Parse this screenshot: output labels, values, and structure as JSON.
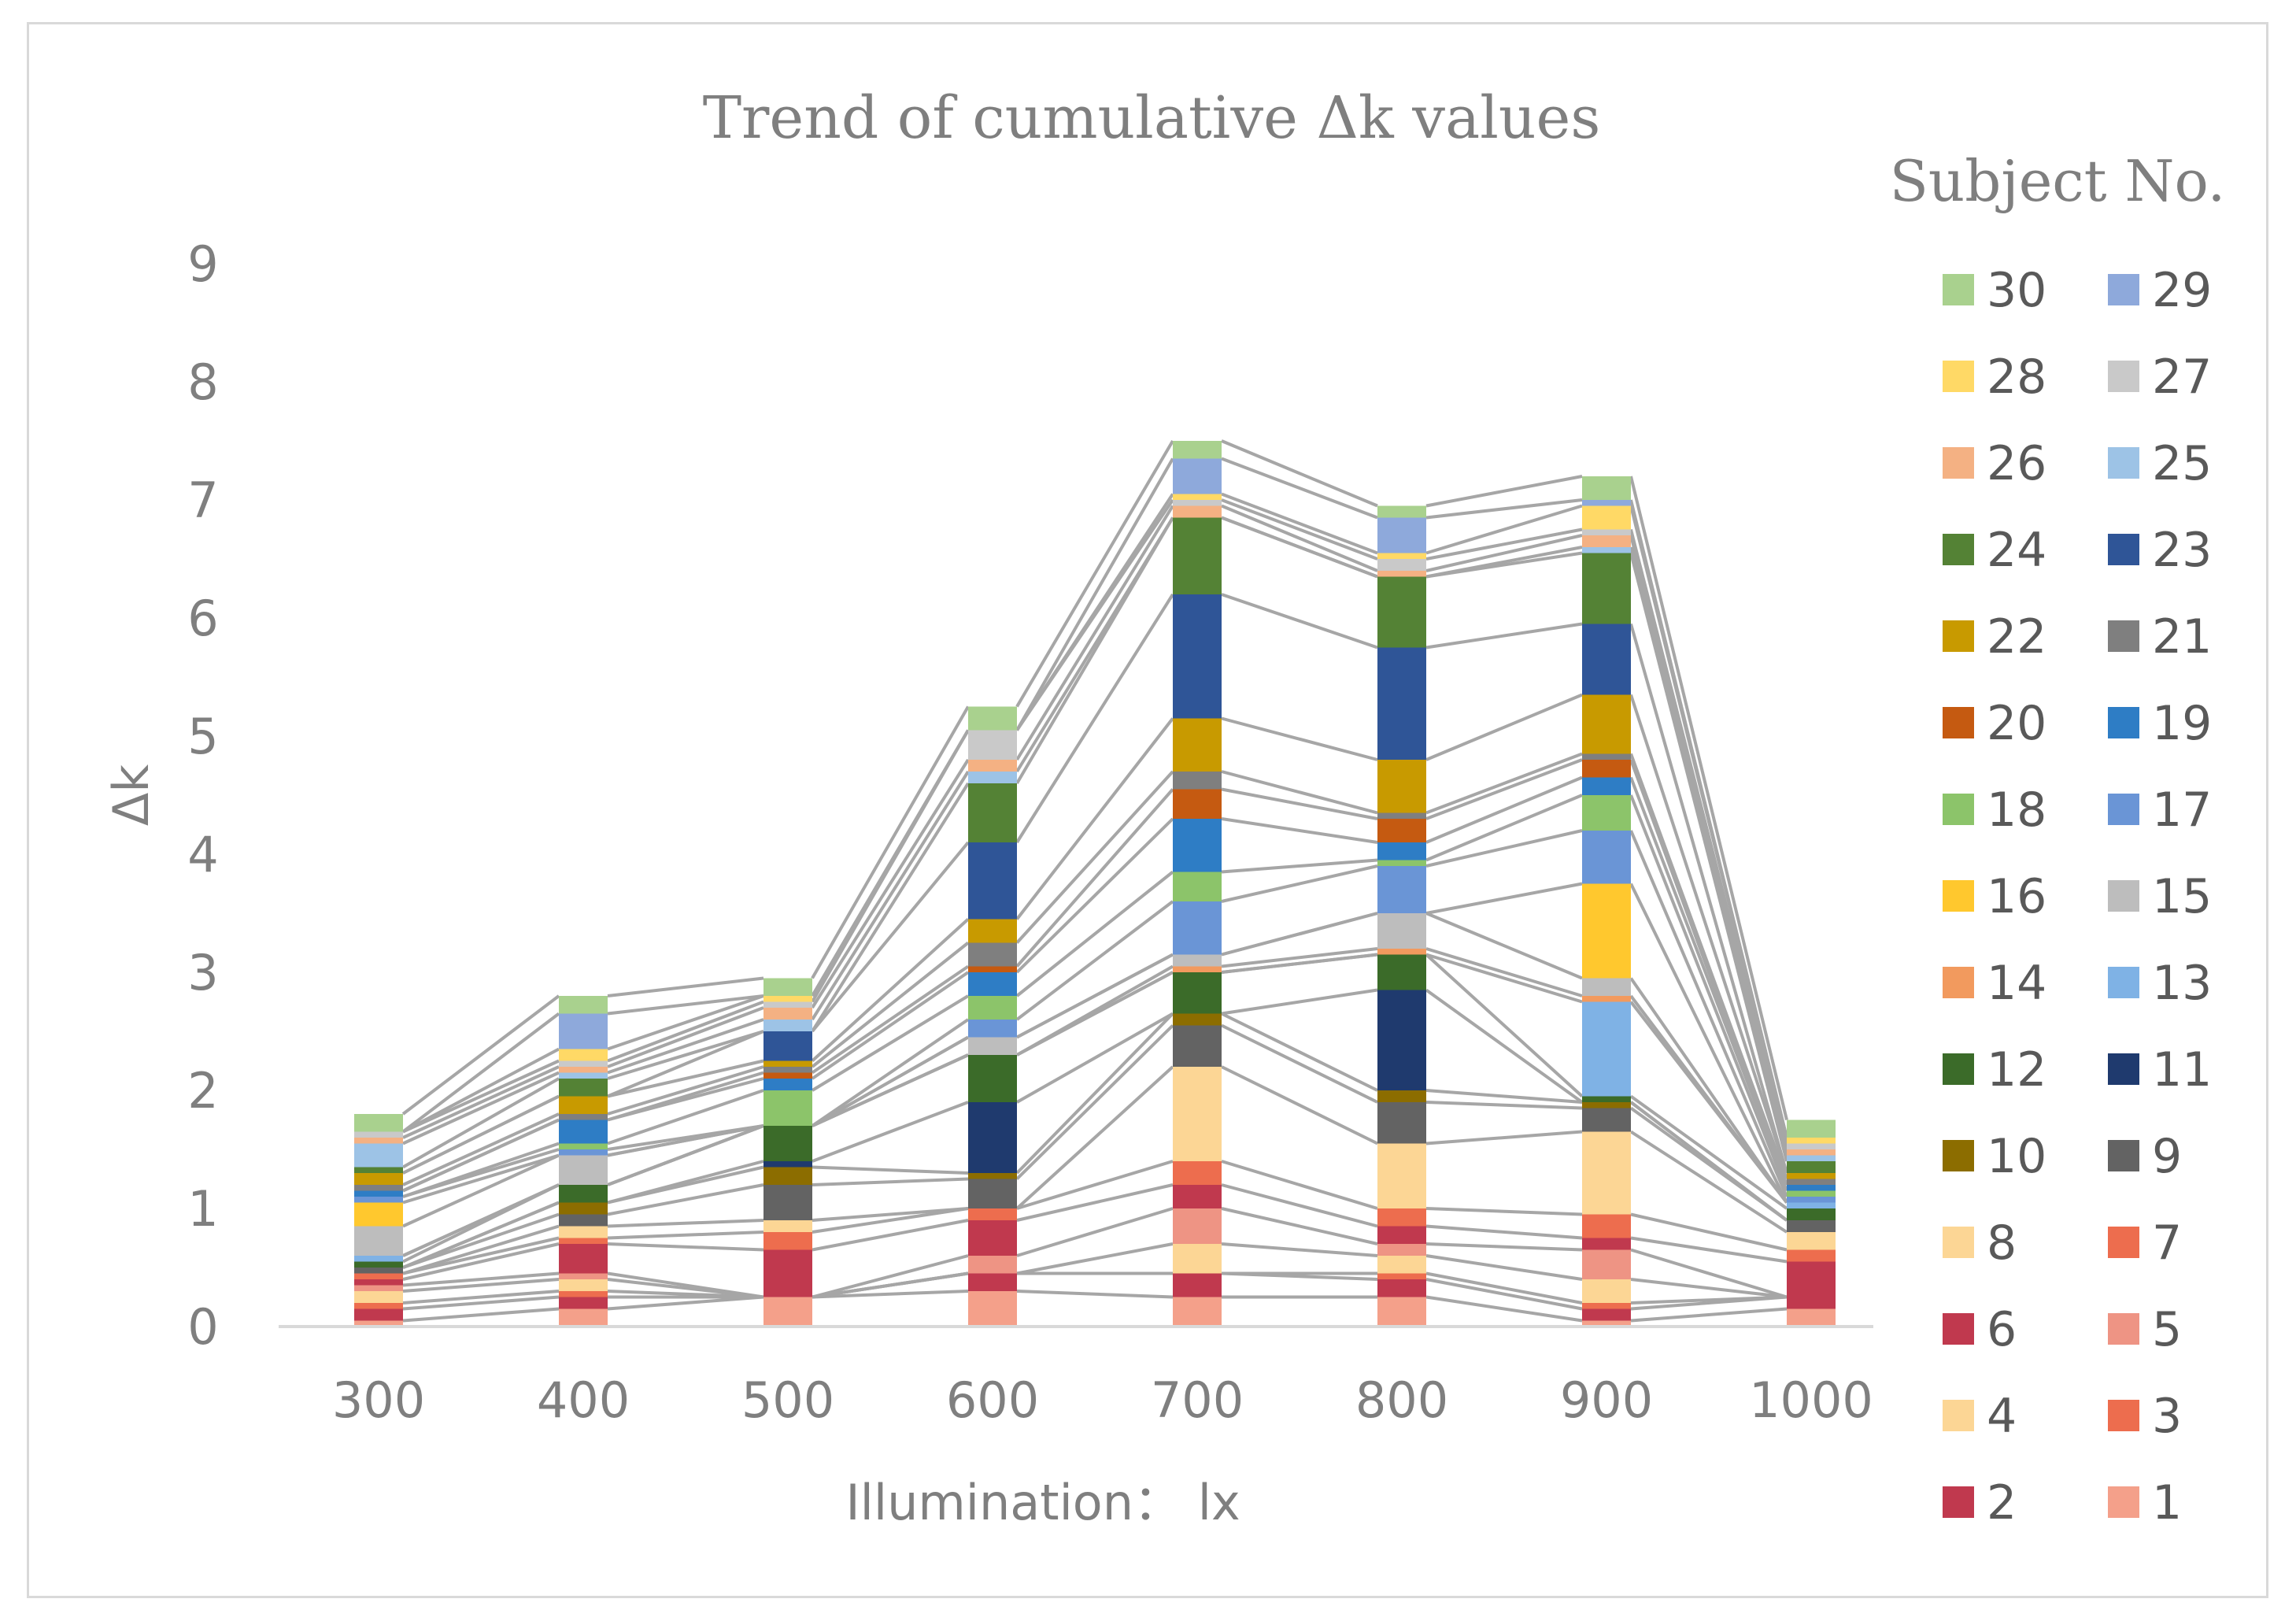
{
  "chart_data": {
    "type": "stacked-bar",
    "title": "Trend of cumulative Δk values",
    "xlabel": "Illumination： lx",
    "ylabel": "Δk",
    "legend_title": "Subject No.",
    "legend_position": "right",
    "ylim": [
      0,
      9
    ],
    "yticks": [
      "0",
      "1",
      "2",
      "3",
      "4",
      "5",
      "6",
      "7",
      "8",
      "9"
    ],
    "categories": [
      "300",
      "400",
      "500",
      "600",
      "700",
      "800",
      "900",
      "1000"
    ],
    "series": [
      {
        "name": "1",
        "color": "#F4A08A",
        "values": [
          0.05,
          0.15,
          0.25,
          0.3,
          0.25,
          0.25,
          0.05,
          0.15
        ]
      },
      {
        "name": "2",
        "color": "#C0394E",
        "values": [
          0.1,
          0.1,
          0.0,
          0.15,
          0.2,
          0.15,
          0.1,
          0.1
        ]
      },
      {
        "name": "3",
        "color": "#ED6D4E",
        "values": [
          0.05,
          0.05,
          0.0,
          0.0,
          0.0,
          0.05,
          0.05,
          0.0
        ]
      },
      {
        "name": "4",
        "color": "#FCD695",
        "values": [
          0.1,
          0.1,
          0.0,
          0.0,
          0.25,
          0.15,
          0.2,
          0.0
        ]
      },
      {
        "name": "5",
        "color": "#EE9484",
        "values": [
          0.05,
          0.05,
          0.0,
          0.15,
          0.3,
          0.1,
          0.25,
          0.0
        ]
      },
      {
        "name": "6",
        "color": "#C0394E",
        "values": [
          0.05,
          0.25,
          0.4,
          0.3,
          0.2,
          0.15,
          0.1,
          0.3
        ]
      },
      {
        "name": "7",
        "color": "#ED6D4E",
        "values": [
          0.05,
          0.05,
          0.15,
          0.1,
          0.2,
          0.15,
          0.2,
          0.1
        ]
      },
      {
        "name": "8",
        "color": "#FCD695",
        "values": [
          0.0,
          0.1,
          0.1,
          0.0,
          0.8,
          0.55,
          0.7,
          0.15
        ]
      },
      {
        "name": "9",
        "color": "#636363",
        "values": [
          0.05,
          0.1,
          0.3,
          0.25,
          0.35,
          0.35,
          0.2,
          0.1
        ]
      },
      {
        "name": "10",
        "color": "#8C6D00",
        "values": [
          0.0,
          0.1,
          0.15,
          0.05,
          0.1,
          0.1,
          0.05,
          0.0
        ]
      },
      {
        "name": "11",
        "color": "#1F3A6E",
        "values": [
          0.0,
          0.0,
          0.05,
          0.6,
          0.0,
          0.85,
          0.0,
          0.0
        ]
      },
      {
        "name": "12",
        "color": "#3B6B29",
        "values": [
          0.05,
          0.15,
          0.3,
          0.4,
          0.35,
          0.3,
          0.05,
          0.1
        ]
      },
      {
        "name": "13",
        "color": "#7FB2E5",
        "values": [
          0.05,
          0.0,
          0.0,
          0.0,
          0.0,
          0.0,
          0.8,
          0.05
        ]
      },
      {
        "name": "14",
        "color": "#F29A5E",
        "values": [
          0.0,
          0.0,
          0.0,
          0.0,
          0.05,
          0.05,
          0.05,
          0.0
        ]
      },
      {
        "name": "15",
        "color": "#BDBDBD",
        "values": [
          0.25,
          0.25,
          0.0,
          0.15,
          0.1,
          0.3,
          0.15,
          0.0
        ]
      },
      {
        "name": "16",
        "color": "#FFC82E",
        "values": [
          0.2,
          0.0,
          0.0,
          0.0,
          0.0,
          0.0,
          0.8,
          0.0
        ]
      },
      {
        "name": "17",
        "color": "#6A95D6",
        "values": [
          0.05,
          0.05,
          0.0,
          0.15,
          0.45,
          0.4,
          0.45,
          0.05
        ]
      },
      {
        "name": "18",
        "color": "#8CC46A",
        "values": [
          0.0,
          0.05,
          0.3,
          0.2,
          0.25,
          0.05,
          0.3,
          0.05
        ]
      },
      {
        "name": "19",
        "color": "#2E7DC5",
        "values": [
          0.05,
          0.2,
          0.1,
          0.2,
          0.45,
          0.15,
          0.15,
          0.05
        ]
      },
      {
        "name": "20",
        "color": "#C55A11",
        "values": [
          0.0,
          0.0,
          0.05,
          0.05,
          0.25,
          0.2,
          0.15,
          0.0
        ]
      },
      {
        "name": "21",
        "color": "#7F7F7F",
        "values": [
          0.05,
          0.05,
          0.05,
          0.2,
          0.15,
          0.05,
          0.05,
          0.05
        ]
      },
      {
        "name": "22",
        "color": "#C89A00",
        "values": [
          0.1,
          0.15,
          0.05,
          0.2,
          0.45,
          0.45,
          0.5,
          0.05
        ]
      },
      {
        "name": "23",
        "color": "#2F5597",
        "values": [
          0.0,
          0.0,
          0.25,
          0.65,
          1.05,
          0.95,
          0.6,
          0.0
        ]
      },
      {
        "name": "24",
        "color": "#548235",
        "values": [
          0.05,
          0.15,
          0.0,
          0.5,
          0.65,
          0.6,
          0.6,
          0.1
        ]
      },
      {
        "name": "25",
        "color": "#9DC3E6",
        "values": [
          0.2,
          0.05,
          0.1,
          0.1,
          0.0,
          0.0,
          0.05,
          0.05
        ]
      },
      {
        "name": "26",
        "color": "#F4B183",
        "values": [
          0.05,
          0.05,
          0.1,
          0.1,
          0.1,
          0.05,
          0.1,
          0.05
        ]
      },
      {
        "name": "27",
        "color": "#C9C9C9",
        "values": [
          0.05,
          0.05,
          0.05,
          0.25,
          0.05,
          0.1,
          0.05,
          0.05
        ]
      },
      {
        "name": "28",
        "color": "#FFD966",
        "values": [
          0.0,
          0.1,
          0.05,
          0.0,
          0.05,
          0.05,
          0.2,
          0.05
        ]
      },
      {
        "name": "29",
        "color": "#8EA9DB",
        "values": [
          0.0,
          0.3,
          0.0,
          0.0,
          0.3,
          0.3,
          0.05,
          0.0
        ]
      },
      {
        "name": "30",
        "color": "#A9D18E",
        "values": [
          0.15,
          0.15,
          0.15,
          0.2,
          0.15,
          0.1,
          0.2,
          0.15
        ]
      }
    ]
  }
}
